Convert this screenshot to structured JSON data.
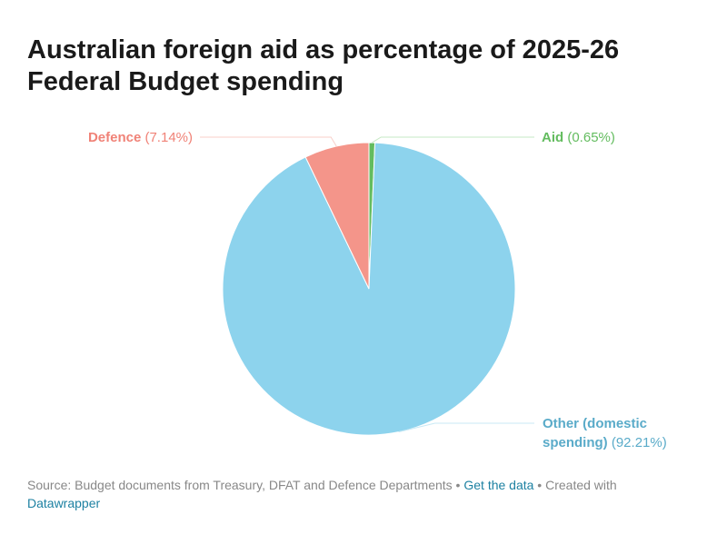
{
  "title": "Australian foreign aid as percentage of 2025-26 Federal Budget spending",
  "chart_data": {
    "type": "pie",
    "title": "Australian foreign aid as percentage of 2025-26 Federal Budget spending",
    "slices": [
      {
        "label": "Aid",
        "label_line2": "",
        "value": 0.65,
        "value_text": "(0.65%)",
        "color": "#63bc5f"
      },
      {
        "label": "Other (domestic",
        "label_line2": "spending)",
        "value": 92.21,
        "value_text": "(92.21%)",
        "color": "#8dd3ed"
      },
      {
        "label": "Defence",
        "label_line2": "",
        "value": 7.14,
        "value_text": "(7.14%)",
        "color": "#f4958a"
      }
    ],
    "start_angle": "12 o'clock, clockwise",
    "label_colors": {
      "Aid": "#63bc5f",
      "Other (domestic": "#5aabc9",
      "Defence": "#f08277"
    }
  },
  "footer": {
    "source_text": "Source: Budget documents from Treasury, DFAT and Defence Departments",
    "separator": " • ",
    "get_data_link": "Get the data",
    "created_with_text": "Created with",
    "datawrapper_link": "Datawrapper"
  }
}
